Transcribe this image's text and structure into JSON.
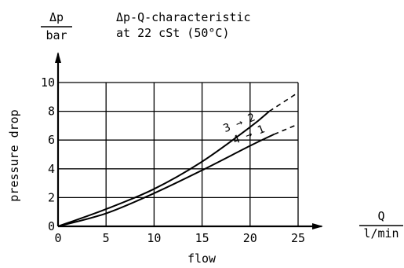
{
  "chart_data": {
    "type": "line",
    "title_lines": [
      "Δp-Q-characteristic",
      "at 22 cSt (50°C)"
    ],
    "y_unit_top": "Δp",
    "y_unit_bottom": "bar",
    "ylabel": "pressure drop",
    "xlabel": "flow",
    "x_unit_top": "Q",
    "x_unit_bottom": "l/min",
    "xlim": [
      0,
      25
    ],
    "ylim": [
      0,
      10
    ],
    "x_ticks": [
      "0",
      "5",
      "10",
      "15",
      "20",
      "25"
    ],
    "y_ticks": [
      "0",
      "2",
      "4",
      "6",
      "8",
      "10"
    ],
    "grid": true,
    "series": [
      {
        "name": "3 → 2",
        "x": [
          0,
          5,
          10,
          15,
          20,
          22,
          25
        ],
        "y": [
          0,
          1.2,
          2.6,
          4.5,
          6.9,
          8.0,
          9.3
        ],
        "solid_until_x": 22
      },
      {
        "name": "4 → 1",
        "x": [
          0,
          5,
          10,
          15,
          20,
          22.5,
          25
        ],
        "y": [
          0,
          0.9,
          2.3,
          3.9,
          5.6,
          6.4,
          7.1
        ],
        "solid_until_x": 22.5
      }
    ]
  }
}
